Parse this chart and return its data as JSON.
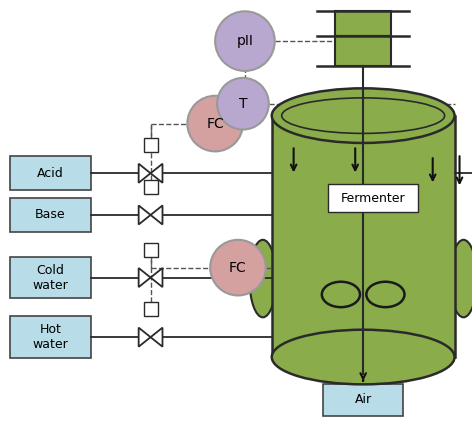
{
  "bg_color": "#ffffff",
  "fermenter_color": "#8aac4a",
  "fermenter_edge": "#2a2a2a",
  "box_color": "#b8dde8",
  "box_edge": "#444444",
  "fc_color": "#d4a0a0",
  "ph_color": "#b8a8d0",
  "t_color": "#b8a8d0",
  "motor_color": "#8aac4a",
  "line_color": "#2a2a2a",
  "dashed_color": "#555555",
  "arrow_color": "#111111",
  "labels": {
    "acid": "Acid",
    "base": "Base",
    "cold_water": "Cold\nwater",
    "hot_water": "Hot\nwater",
    "air": "Air",
    "fermenter": "Fermenter",
    "fc1": "FC",
    "fc2": "FC",
    "ph": "pII",
    "t": "T"
  },
  "figsize": [
    4.74,
    4.23
  ],
  "dpi": 100
}
